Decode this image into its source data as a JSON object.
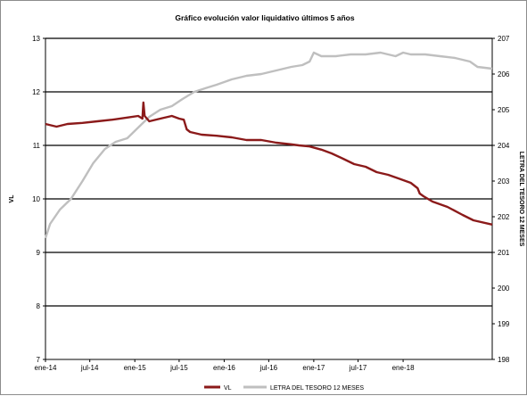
{
  "chart_data": {
    "type": "line",
    "title": "Gráfico evolución valor liquidativo últimos 5 años",
    "ylabel": "VL",
    "y2label": "LETRA DEL TESORO 12 MESES",
    "xlim": [
      "2014-01-01",
      "2018-12-31"
    ],
    "xtick_labels": [
      "ene-14",
      "jul-14",
      "ene-15",
      "jul-15",
      "ene-16",
      "jul-16",
      "ene-17",
      "jul-17",
      "ene-18"
    ],
    "xtick_dates": [
      "2014-01-01",
      "2014-07-01",
      "2015-01-01",
      "2015-07-01",
      "2016-01-01",
      "2016-07-01",
      "2017-01-01",
      "2017-07-01",
      "2018-01-01"
    ],
    "ylim": [
      7,
      13
    ],
    "yticks": [
      7,
      8,
      9,
      10,
      11,
      12,
      13
    ],
    "y2lim": [
      198,
      207
    ],
    "y2ticks": [
      198,
      199,
      200,
      201,
      202,
      203,
      204,
      205,
      206,
      207
    ],
    "grid": "horizontal major lines on left axis",
    "legend_position": "bottom",
    "series": [
      {
        "name": "VL",
        "axis": "left",
        "color": "#8b1a1a",
        "x": [
          "2014-01-01",
          "2014-02-15",
          "2014-04-01",
          "2014-06-01",
          "2014-08-01",
          "2014-10-01",
          "2014-12-01",
          "2015-01-15",
          "2015-02-01",
          "2015-02-05",
          "2015-02-10",
          "2015-03-01",
          "2015-04-15",
          "2015-06-01",
          "2015-07-01",
          "2015-07-20",
          "2015-08-01",
          "2015-08-15",
          "2015-10-01",
          "2015-12-01",
          "2016-02-01",
          "2016-04-01",
          "2016-06-01",
          "2016-08-01",
          "2016-10-01",
          "2016-11-01",
          "2016-12-15",
          "2017-02-01",
          "2017-03-15",
          "2017-05-01",
          "2017-06-15",
          "2017-08-01",
          "2017-09-15",
          "2017-11-01",
          "2017-12-15",
          "2018-02-01",
          "2018-03-01",
          "2018-03-10",
          "2018-03-25",
          "2018-05-01",
          "2018-07-01",
          "2018-09-01",
          "2018-10-15",
          "2018-12-31"
        ],
        "values": [
          11.4,
          11.35,
          11.4,
          11.42,
          11.45,
          11.48,
          11.52,
          11.55,
          11.5,
          11.8,
          11.55,
          11.45,
          11.5,
          11.55,
          11.5,
          11.48,
          11.3,
          11.25,
          11.2,
          11.18,
          11.15,
          11.1,
          11.1,
          11.05,
          11.02,
          11.0,
          10.98,
          10.92,
          10.85,
          10.75,
          10.65,
          10.6,
          10.5,
          10.45,
          10.38,
          10.3,
          10.2,
          10.1,
          10.05,
          9.95,
          9.85,
          9.7,
          9.6,
          9.52
        ]
      },
      {
        "name": "LETRA DEL TESORO 12 MESES",
        "axis": "right",
        "color": "#bfbfbf",
        "x": [
          "2014-01-01",
          "2014-01-20",
          "2014-03-01",
          "2014-04-15",
          "2014-06-01",
          "2014-07-15",
          "2014-09-01",
          "2014-10-15",
          "2014-12-01",
          "2015-01-15",
          "2015-03-01",
          "2015-04-15",
          "2015-06-01",
          "2015-07-15",
          "2015-09-01",
          "2015-10-15",
          "2015-12-01",
          "2016-02-01",
          "2016-04-01",
          "2016-06-01",
          "2016-07-01",
          "2016-08-01",
          "2016-10-01",
          "2016-11-15",
          "2016-12-15",
          "2017-01-01",
          "2017-02-01",
          "2017-04-01",
          "2017-06-01",
          "2017-08-01",
          "2017-10-01",
          "2017-12-01",
          "2018-01-01",
          "2018-02-01",
          "2018-04-01",
          "2018-06-01",
          "2018-08-01",
          "2018-10-01",
          "2018-11-01",
          "2018-12-31"
        ],
        "values": [
          201.4,
          201.8,
          202.2,
          202.5,
          203.0,
          203.5,
          203.9,
          204.1,
          204.2,
          204.5,
          204.8,
          205.0,
          205.1,
          205.3,
          205.5,
          205.6,
          205.7,
          205.85,
          205.95,
          206.0,
          206.05,
          206.1,
          206.2,
          206.25,
          206.35,
          206.6,
          206.5,
          206.5,
          206.55,
          206.55,
          206.6,
          206.5,
          206.6,
          206.55,
          206.55,
          206.5,
          206.45,
          206.35,
          206.2,
          206.15
        ]
      }
    ]
  }
}
